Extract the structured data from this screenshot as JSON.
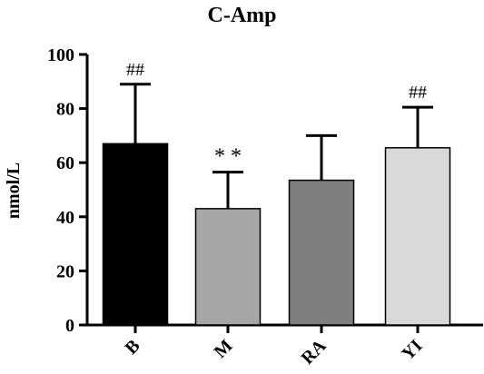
{
  "chart_data": {
    "type": "bar",
    "title": "C-Amp",
    "xlabel": "",
    "ylabel": "nmol/L",
    "ylim": [
      0,
      100
    ],
    "yticks": [
      0,
      20,
      40,
      60,
      80,
      100
    ],
    "categories": [
      "B",
      "M",
      "RA",
      "YI"
    ],
    "values": [
      67,
      43,
      53.5,
      65.5
    ],
    "error_upper": [
      89,
      56.5,
      70,
      80.5
    ],
    "annotations": [
      "##",
      "* *",
      "",
      "##"
    ],
    "bar_colors": [
      "#000000",
      "#a6a6a6",
      "#7f7f7f",
      "#d9d9d9"
    ],
    "grid": false,
    "legend": "none"
  }
}
